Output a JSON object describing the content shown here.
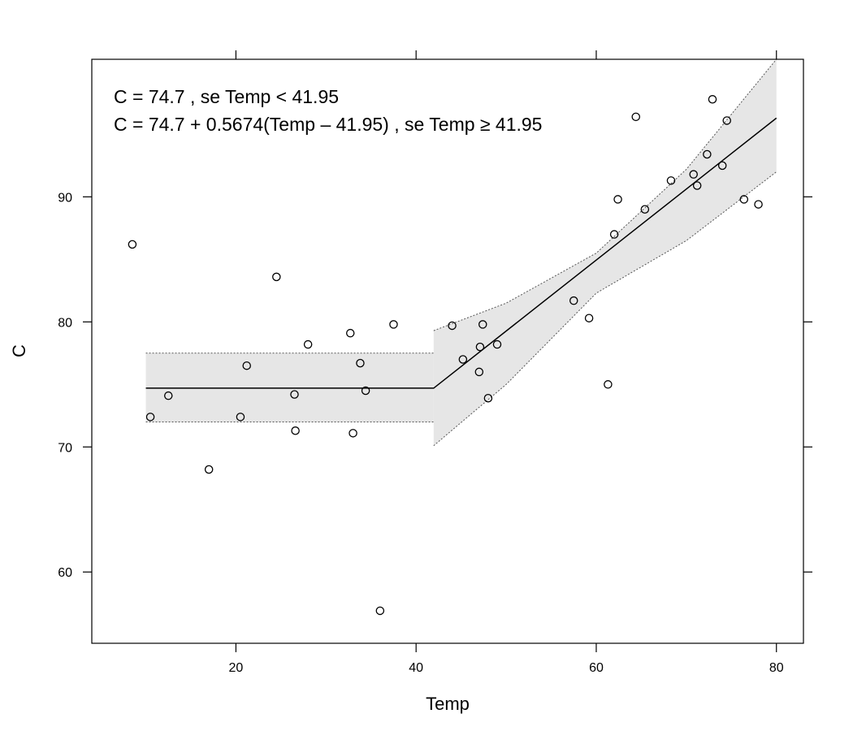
{
  "chart_data": {
    "type": "scatter",
    "title": "",
    "xlabel": "Temp",
    "ylabel": "C",
    "xlim": [
      4,
      83
    ],
    "ylim": [
      54.3,
      101
    ],
    "x_ticks": [
      20,
      40,
      60,
      80
    ],
    "y_ticks": [
      60,
      70,
      80,
      90
    ],
    "x_tick_labels": [
      "20",
      "40",
      "60",
      "80"
    ],
    "y_tick_labels": [
      "60",
      "70",
      "80",
      "90"
    ],
    "grid": false,
    "annotations": [
      "C = 74.7 , se Temp < 41.95",
      "C = 74.7 + 0.5674(Temp – 41.95) , se Temp ≥ 41.95"
    ],
    "breakpoint": 41.95,
    "fit": {
      "x": [
        10,
        41.95,
        41.95,
        80
      ],
      "y": [
        74.7,
        74.7,
        74.7,
        96.3
      ]
    },
    "band_left": {
      "x": [
        10,
        41.95
      ],
      "upper": [
        77.5,
        77.5
      ],
      "lower": [
        72.0,
        72.0
      ]
    },
    "band_right": {
      "x": [
        41.95,
        50,
        60,
        70,
        80
      ],
      "upper": [
        79.3,
        81.5,
        85.5,
        92.2,
        101.0
      ],
      "lower": [
        70.1,
        75.0,
        82.3,
        86.5,
        92.0
      ]
    },
    "points": {
      "x": [
        8.5,
        10.5,
        12.5,
        17,
        20.5,
        21.2,
        24.5,
        26.5,
        26.6,
        28,
        32.7,
        33,
        33.8,
        34.4,
        36,
        37.5,
        44,
        45.2,
        47,
        47.1,
        47.4,
        48,
        49,
        57.5,
        59.2,
        61.3,
        62,
        62.4,
        64.4,
        65.4,
        68.3,
        70.8,
        71.2,
        72.3,
        72.9,
        74,
        74.5,
        76.4,
        78
      ],
      "y": [
        86.2,
        72.4,
        74.1,
        68.2,
        72.4,
        76.5,
        83.6,
        74.2,
        71.3,
        78.2,
        79.1,
        71.1,
        76.7,
        74.5,
        56.9,
        79.8,
        79.7,
        77.0,
        76.0,
        78.0,
        79.8,
        73.9,
        78.2,
        81.7,
        80.3,
        75.0,
        87.0,
        89.8,
        96.4,
        89.0,
        91.3,
        91.8,
        90.9,
        93.4,
        97.8,
        92.5,
        96.1,
        89.8,
        89.4
      ]
    }
  }
}
